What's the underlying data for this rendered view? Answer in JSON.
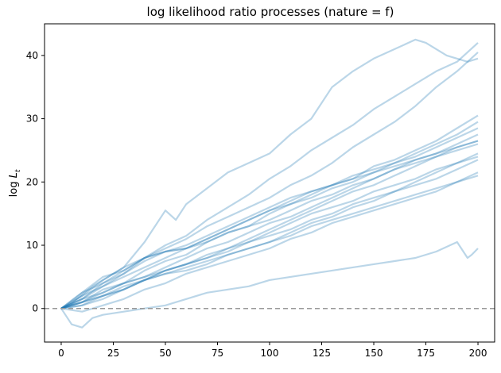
{
  "chart_data": {
    "type": "line",
    "title": "log likelihood ratio processes (nature = f)",
    "xlabel": "",
    "ylabel": "log L_t",
    "xlim": [
      -8,
      208
    ],
    "ylim": [
      -5.3,
      45
    ],
    "xticks": [
      0,
      25,
      50,
      75,
      100,
      125,
      150,
      175,
      200
    ],
    "yticks": [
      0,
      10,
      20,
      30,
      40
    ],
    "grid": false,
    "line_color": "#1f77b4",
    "line_opacity": 0.3,
    "reference_line": {
      "y": 0,
      "style": "dashed",
      "color": "#999999"
    },
    "series": [
      {
        "x": [
          0,
          5,
          10,
          15,
          20,
          30,
          40,
          50,
          55,
          60,
          70,
          80,
          90,
          100,
          110,
          120,
          130,
          140,
          150,
          160,
          170,
          175,
          185,
          195,
          200
        ],
        "values": [
          0,
          0.8,
          2.2,
          3.5,
          4.5,
          6.5,
          10.5,
          15.5,
          14,
          16.5,
          19,
          21.5,
          23,
          24.5,
          27.5,
          30,
          35,
          37.5,
          39.5,
          41,
          42.5,
          42,
          40,
          39,
          39.5
        ]
      },
      {
        "x": [
          0,
          10,
          20,
          30,
          40,
          50,
          60,
          70,
          80,
          90,
          100,
          110,
          120,
          130,
          140,
          150,
          160,
          170,
          180,
          190,
          200
        ],
        "values": [
          0,
          1.5,
          4,
          5.5,
          8,
          10,
          11.5,
          14,
          16,
          18,
          20.5,
          22.5,
          25,
          27,
          29,
          31.5,
          33.5,
          35.5,
          37.5,
          39,
          42
        ]
      },
      {
        "x": [
          0,
          10,
          20,
          30,
          40,
          50,
          60,
          70,
          80,
          90,
          100,
          110,
          120,
          130,
          140,
          150,
          160,
          170,
          180,
          190,
          200
        ],
        "values": [
          0,
          2,
          4.5,
          6.5,
          8,
          9.5,
          11,
          13,
          14.5,
          16,
          17.5,
          19.5,
          21,
          23,
          25.5,
          27.5,
          29.5,
          32,
          35,
          37.5,
          40.5
        ]
      },
      {
        "x": [
          0,
          10,
          20,
          30,
          40,
          50,
          60,
          70,
          80,
          90,
          100,
          110,
          120,
          130,
          140,
          150,
          160,
          170,
          180,
          190,
          200
        ],
        "values": [
          0,
          1.5,
          3.5,
          5.5,
          7.5,
          9,
          10,
          11.5,
          13,
          14.5,
          16,
          17.5,
          18.5,
          19.5,
          20.5,
          22.5,
          23.5,
          25,
          26.5,
          28.5,
          30.5
        ]
      },
      {
        "x": [
          0,
          10,
          20,
          30,
          40,
          50,
          60,
          70,
          80,
          90,
          100,
          110,
          120,
          130,
          140,
          150,
          160,
          170,
          180,
          190,
          200
        ],
        "values": [
          0,
          2,
          3.5,
          5,
          6.5,
          8,
          9.5,
          11,
          12.5,
          14,
          15.5,
          17,
          18.5,
          19.5,
          21,
          22,
          23,
          24.5,
          26,
          27.5,
          29.5
        ]
      },
      {
        "x": [
          0,
          10,
          20,
          30,
          40,
          50,
          60,
          70,
          80,
          90,
          100,
          110,
          120,
          130,
          140,
          150,
          160,
          170,
          180,
          190,
          200
        ],
        "values": [
          0,
          1,
          3,
          4,
          6,
          7.5,
          8.5,
          10.5,
          12,
          13,
          15,
          16.5,
          17.5,
          19,
          20,
          21.5,
          23,
          24,
          25.5,
          27,
          28.5
        ]
      },
      {
        "x": [
          0,
          10,
          20,
          30,
          40,
          50,
          60,
          70,
          80,
          90,
          100,
          110,
          120,
          130,
          140,
          150,
          160,
          170,
          180,
          190,
          200
        ],
        "values": [
          0,
          2.5,
          5,
          6,
          8,
          9,
          9.5,
          11,
          12.5,
          14,
          15.5,
          16.5,
          18,
          19.5,
          20.5,
          21.5,
          22.5,
          23.5,
          24.5,
          26,
          27.5
        ]
      },
      {
        "x": [
          0,
          10,
          20,
          30,
          40,
          50,
          60,
          70,
          80,
          90,
          100,
          110,
          120,
          130,
          140,
          150,
          160,
          170,
          180,
          190,
          200
        ],
        "values": [
          0,
          1,
          2.5,
          4,
          5,
          6.5,
          8,
          9.5,
          10.5,
          12,
          13.5,
          14.5,
          16,
          17.5,
          19,
          20.5,
          22,
          23,
          24,
          25.5,
          26.5
        ]
      },
      {
        "x": [
          0,
          10,
          20,
          30,
          40,
          50,
          60,
          70,
          80,
          90,
          100,
          110,
          120,
          130,
          140,
          150,
          160,
          170,
          180,
          190,
          200
        ],
        "values": [
          0,
          0.5,
          2,
          3,
          4.5,
          6,
          7,
          8,
          9.5,
          11,
          12.5,
          14,
          15.5,
          17,
          18.5,
          19.5,
          21,
          22.5,
          24,
          25,
          26
        ]
      },
      {
        "x": [
          0,
          10,
          20,
          30,
          40,
          50,
          60,
          70,
          80,
          90,
          100,
          110,
          120,
          130,
          140,
          150,
          160,
          170,
          180,
          190,
          200
        ],
        "values": [
          0,
          1.5,
          2.5,
          4,
          5,
          6,
          7,
          8.5,
          9.5,
          10.5,
          12,
          13.5,
          15,
          16,
          17,
          18.5,
          19.5,
          20.5,
          22,
          23,
          24.5
        ]
      },
      {
        "x": [
          0,
          10,
          20,
          30,
          40,
          50,
          60,
          70,
          80,
          90,
          100,
          110,
          120,
          130,
          140,
          150,
          160,
          170,
          180,
          190,
          200
        ],
        "values": [
          0,
          0.5,
          1.5,
          3,
          4.5,
          6,
          7,
          8,
          9,
          10.5,
          11.5,
          12.5,
          14,
          15,
          16.5,
          17.5,
          18.5,
          19.5,
          20.5,
          22,
          23.5
        ]
      },
      {
        "x": [
          0,
          10,
          20,
          30,
          40,
          50,
          60,
          70,
          80,
          90,
          100,
          110,
          120,
          130,
          140,
          150,
          160,
          170,
          180,
          190,
          200
        ],
        "values": [
          0,
          1,
          2,
          3.5,
          4.5,
          5.5,
          6.5,
          7.5,
          8.5,
          9.5,
          10.5,
          11.5,
          13,
          14,
          15,
          16,
          17,
          18,
          19,
          20,
          21
        ]
      },
      {
        "x": [
          0,
          10,
          20,
          30,
          40,
          50,
          60,
          70,
          80,
          90,
          100,
          110,
          120,
          130,
          140,
          150,
          160,
          170,
          180,
          190,
          200
        ],
        "values": [
          0,
          -0.5,
          0.5,
          1.5,
          3,
          4,
          5.5,
          6.5,
          7.5,
          8.5,
          9.5,
          11,
          12,
          13.5,
          14.5,
          15.5,
          16.5,
          17.5,
          18.5,
          20,
          21.5
        ]
      },
      {
        "x": [
          0,
          10,
          20,
          30,
          40,
          50,
          60,
          70,
          80,
          90,
          100,
          110,
          120,
          130,
          140,
          150,
          160,
          170,
          180,
          190,
          200
        ],
        "values": [
          0,
          2.5,
          4,
          6,
          8,
          9,
          9.5,
          10.5,
          12,
          13,
          14,
          15.5,
          17,
          18,
          19.5,
          20.5,
          22,
          23.5,
          24.5,
          25.5,
          26.5
        ]
      },
      {
        "x": [
          0,
          10,
          20,
          30,
          40,
          50,
          60,
          70,
          80,
          90,
          100,
          110,
          120,
          130,
          140,
          150,
          160,
          170,
          180,
          190,
          200
        ],
        "values": [
          0,
          1,
          2,
          3,
          4.5,
          5.5,
          6,
          7,
          8.5,
          9.5,
          10.5,
          12,
          13.5,
          14.5,
          16,
          17,
          18.5,
          20,
          21.5,
          23,
          24
        ]
      },
      {
        "x": [
          0,
          5,
          10,
          15,
          20,
          30,
          40,
          50,
          60,
          70,
          80,
          90,
          100,
          110,
          120,
          130,
          140,
          150,
          160,
          170,
          180,
          190,
          195,
          197,
          200
        ],
        "values": [
          0,
          -2.5,
          -3,
          -1.5,
          -1,
          -0.5,
          0,
          0.5,
          1.5,
          2.5,
          3,
          3.5,
          4.5,
          5,
          5.5,
          6,
          6.5,
          7,
          7.5,
          8,
          9,
          10.5,
          8,
          8.5,
          9.5
        ]
      }
    ]
  }
}
